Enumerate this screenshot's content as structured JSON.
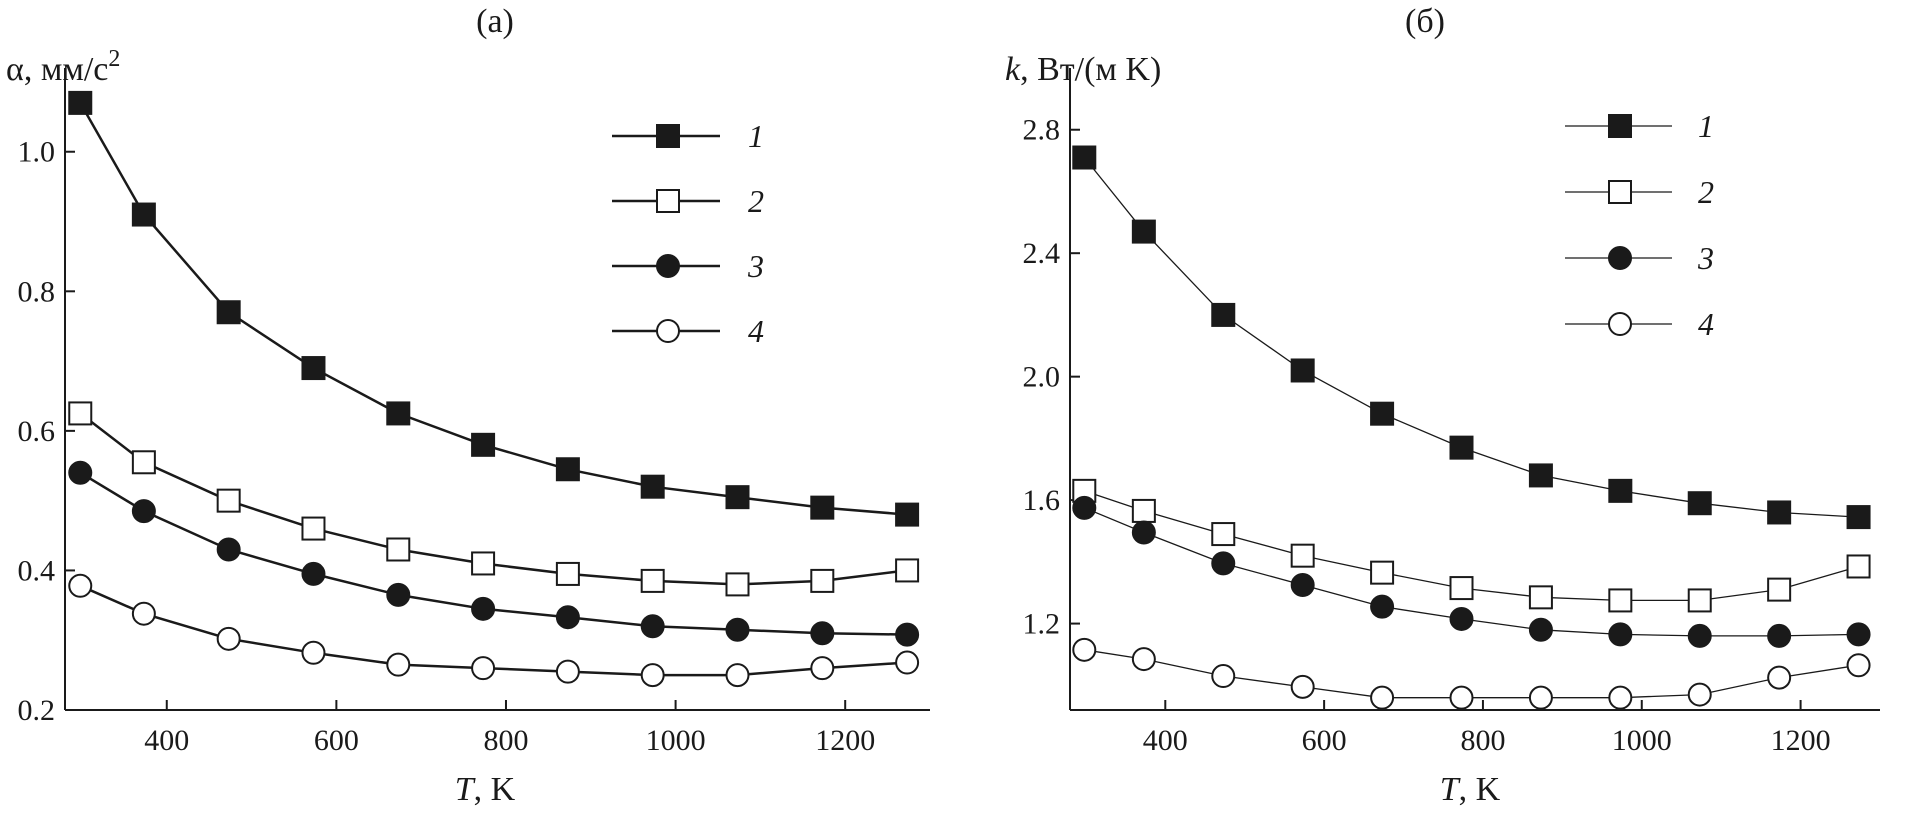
{
  "chart_data": [
    {
      "type": "line",
      "panel": "(a)",
      "title": "(a)",
      "ylabel_symbol": "α",
      "ylabel_units": ", мм/с",
      "ylabel_exp": "2",
      "xlabel_symbol": "T",
      "xlabel_units": ", K",
      "xlim": [
        280,
        1300
      ],
      "ylim": [
        0.2,
        1.12
      ],
      "xticks": [
        400,
        600,
        800,
        1000,
        1200
      ],
      "xtick_labels": [
        "400",
        "600",
        "800",
        "1000",
        "1200"
      ],
      "yticks": [
        0.2,
        0.4,
        0.6,
        0.8,
        1.0
      ],
      "ytick_labels": [
        "0.2",
        "0.4",
        "0.6",
        "0.8",
        "1.0"
      ],
      "x": [
        298,
        373,
        473,
        573,
        673,
        773,
        873,
        973,
        1073,
        1173,
        1273
      ],
      "series": [
        {
          "name": "1",
          "marker": "square-filled",
          "values": [
            1.07,
            0.91,
            0.77,
            0.69,
            0.625,
            0.58,
            0.545,
            0.52,
            0.505,
            0.49,
            0.48
          ]
        },
        {
          "name": "2",
          "marker": "square-open",
          "values": [
            0.625,
            0.555,
            0.5,
            0.46,
            0.43,
            0.41,
            0.395,
            0.385,
            0.38,
            0.385,
            0.4
          ]
        },
        {
          "name": "3",
          "marker": "circle-filled",
          "values": [
            0.54,
            0.485,
            0.43,
            0.395,
            0.365,
            0.345,
            0.333,
            0.32,
            0.315,
            0.31,
            0.308
          ]
        },
        {
          "name": "4",
          "marker": "circle-open",
          "values": [
            0.378,
            0.338,
            0.302,
            0.282,
            0.265,
            0.26,
            0.255,
            0.25,
            0.25,
            0.26,
            0.268
          ]
        }
      ],
      "legend": [
        "1",
        "2",
        "3",
        "4"
      ],
      "legend_position": "top-right"
    },
    {
      "type": "line",
      "panel": "(б)",
      "title": "(б)",
      "ylabel_symbol": "k",
      "ylabel_units": ", Вт/(м K)",
      "ylabel_exp": "",
      "xlabel_symbol": "T",
      "xlabel_units": ", K",
      "xlim": [
        280,
        1300
      ],
      "ylim": [
        0.92,
        3.0
      ],
      "xticks": [
        400,
        600,
        800,
        1000,
        1200
      ],
      "xtick_labels": [
        "400",
        "600",
        "800",
        "1000",
        "1200"
      ],
      "yticks": [
        1.2,
        1.6,
        2.0,
        2.4,
        2.8
      ],
      "ytick_labels": [
        "1.2",
        "1.6",
        "2.0",
        "2.4",
        "2.8"
      ],
      "x": [
        298,
        373,
        473,
        573,
        673,
        773,
        873,
        973,
        1073,
        1173,
        1273
      ],
      "series": [
        {
          "name": "1",
          "marker": "square-filled",
          "values": [
            2.71,
            2.47,
            2.2,
            2.02,
            1.88,
            1.77,
            1.68,
            1.63,
            1.59,
            1.56,
            1.545
          ]
        },
        {
          "name": "2",
          "marker": "square-open",
          "values": [
            1.63,
            1.565,
            1.49,
            1.42,
            1.365,
            1.315,
            1.285,
            1.275,
            1.275,
            1.31,
            1.385
          ]
        },
        {
          "name": "3",
          "marker": "circle-filled",
          "values": [
            1.575,
            1.495,
            1.395,
            1.325,
            1.255,
            1.215,
            1.18,
            1.165,
            1.16,
            1.16,
            1.165
          ]
        },
        {
          "name": "4",
          "marker": "circle-open",
          "values": [
            1.115,
            1.085,
            1.03,
            0.995,
            0.96,
            0.96,
            0.96,
            0.96,
            0.97,
            1.025,
            1.065
          ]
        }
      ],
      "legend": [
        "1",
        "2",
        "3",
        "4"
      ],
      "legend_position": "top-right"
    }
  ]
}
